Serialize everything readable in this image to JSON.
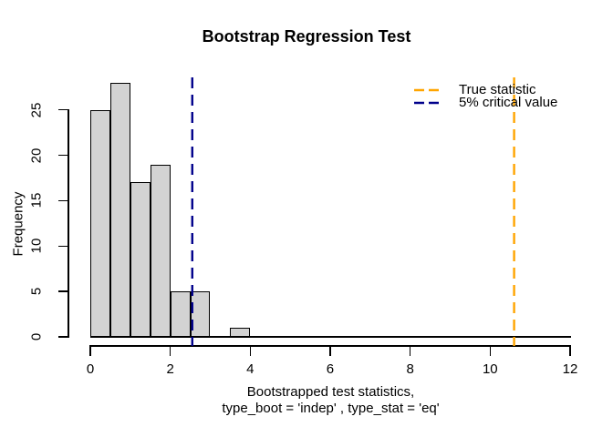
{
  "chart_data": {
    "type": "bar",
    "subtype": "histogram",
    "title": "Bootstrap Regression Test",
    "xlabel_line1": "Bootstrapped test statistics,",
    "xlabel_line2": "type_boot = 'indep' , type_stat = 'eq'",
    "ylabel": "Frequency",
    "bin_width": 0.5,
    "bin_starts": [
      0,
      0.5,
      1,
      1.5,
      2,
      2.5,
      3,
      3.5
    ],
    "counts": [
      25,
      28,
      17,
      19,
      5,
      5,
      0,
      1
    ],
    "x_ticks": [
      0,
      2,
      4,
      6,
      8,
      10,
      12
    ],
    "y_ticks": [
      0,
      5,
      10,
      15,
      20,
      25
    ],
    "xlim": [
      0,
      12
    ],
    "ylim": [
      0,
      28
    ],
    "grid": false,
    "bar_fill": "#D3D3D3",
    "bar_border": "#000000",
    "vlines": [
      {
        "name": "true-statistic",
        "value": 10.6,
        "color": "#FFA500",
        "style": "dashed"
      },
      {
        "name": "critical-value",
        "value": 2.55,
        "color": "#00008B",
        "style": "dashed"
      }
    ],
    "legend": {
      "position": "top-right",
      "boxed": false,
      "items": [
        {
          "label": "True statistic",
          "color": "#FFA500",
          "line_style": "dashed"
        },
        {
          "label": "5% critical value",
          "color": "#00008B",
          "line_style": "dashed"
        }
      ]
    }
  }
}
